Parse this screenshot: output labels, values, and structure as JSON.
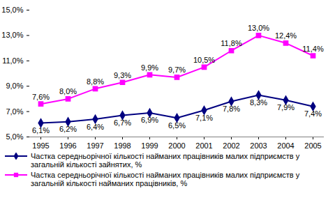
{
  "chart_data": {
    "type": "line",
    "categories": [
      "1995",
      "1996",
      "1997",
      "1998",
      "1999",
      "2000",
      "2001",
      "2002",
      "2003",
      "2004",
      "2005"
    ],
    "series": [
      {
        "name": "Частка середньорічної кількості найманих працівників малих підприємств у загальній кількості зайнятих, %",
        "color": "#000080",
        "marker": "diamond",
        "values": [
          6.1,
          6.2,
          6.4,
          6.7,
          6.9,
          6.5,
          7.1,
          7.8,
          8.3,
          7.9,
          7.4
        ],
        "value_labels": [
          "6,1%",
          "6,2%",
          "6,4%",
          "6,7%",
          "6,9%",
          "6,5%",
          "7,1%",
          "7,8%",
          "8,3%",
          "7,9%",
          "7,4%"
        ]
      },
      {
        "name": "Частка середньорічної кількості найманих працівників малих підприємств у загальній кількості  найманих працівників, %",
        "color": "#ff00ff",
        "marker": "square",
        "values": [
          7.6,
          8.0,
          8.8,
          9.3,
          9.9,
          9.7,
          10.5,
          11.8,
          13.0,
          12.4,
          11.4
        ],
        "value_labels": [
          "7,6%",
          "8,0%",
          "8,8%",
          "9,3%",
          "9,9%",
          "9,7%",
          "10,5%",
          "11,8%",
          "13,0%",
          "12,4%",
          "11,4%"
        ]
      }
    ],
    "ylim": [
      5,
      15
    ],
    "yticks": [
      {
        "value": 5,
        "label": "5,0%"
      },
      {
        "value": 7,
        "label": "7,0%"
      },
      {
        "value": 9,
        "label": "9,0%"
      },
      {
        "value": 11,
        "label": "11,0%"
      },
      {
        "value": 13,
        "label": "13,0%"
      },
      {
        "value": 15,
        "label": "15,0%"
      }
    ],
    "grid": false,
    "data_labels": true,
    "legend": "bottom"
  }
}
